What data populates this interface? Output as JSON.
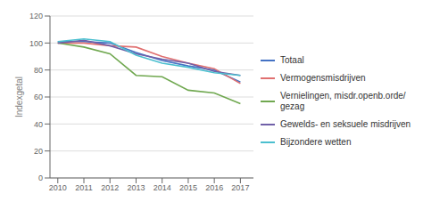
{
  "chart_data": {
    "type": "line",
    "x": [
      2010,
      2011,
      2012,
      2013,
      2014,
      2015,
      2016,
      2017
    ],
    "series": [
      {
        "name": "Totaal",
        "color": "#4472C4",
        "values": [
          101,
          101,
          100,
          93,
          87,
          83,
          80,
          71
        ]
      },
      {
        "name": "Vermogensmisdrijven",
        "color": "#E07070",
        "values": [
          100,
          100,
          98,
          97,
          90,
          85,
          81,
          70
        ]
      },
      {
        "name": "Vernielingen, misdr.openb.orde/\ngezag",
        "color": "#70A850",
        "values": [
          100,
          97,
          92,
          76,
          75,
          65,
          63,
          55
        ]
      },
      {
        "name": "Gewelds- en seksuele misdrijven",
        "color": "#7060A8",
        "values": [
          100,
          102,
          98,
          92,
          88,
          85,
          79,
          76
        ]
      },
      {
        "name": "Bijzondere wetten",
        "color": "#4BBFCF",
        "values": [
          101,
          103,
          101,
          91,
          85,
          82,
          78,
          76
        ]
      }
    ],
    "ylabel": "Indexgetal",
    "xlim": [
      2009.7,
      2017.5
    ],
    "xticks": [
      2010,
      2011,
      2012,
      2013,
      2014,
      2015,
      2016,
      2017
    ],
    "ylim": [
      0,
      120
    ],
    "yticks": [
      0,
      20,
      40,
      60,
      80,
      100,
      120
    ],
    "grid": true,
    "legend": "right"
  }
}
